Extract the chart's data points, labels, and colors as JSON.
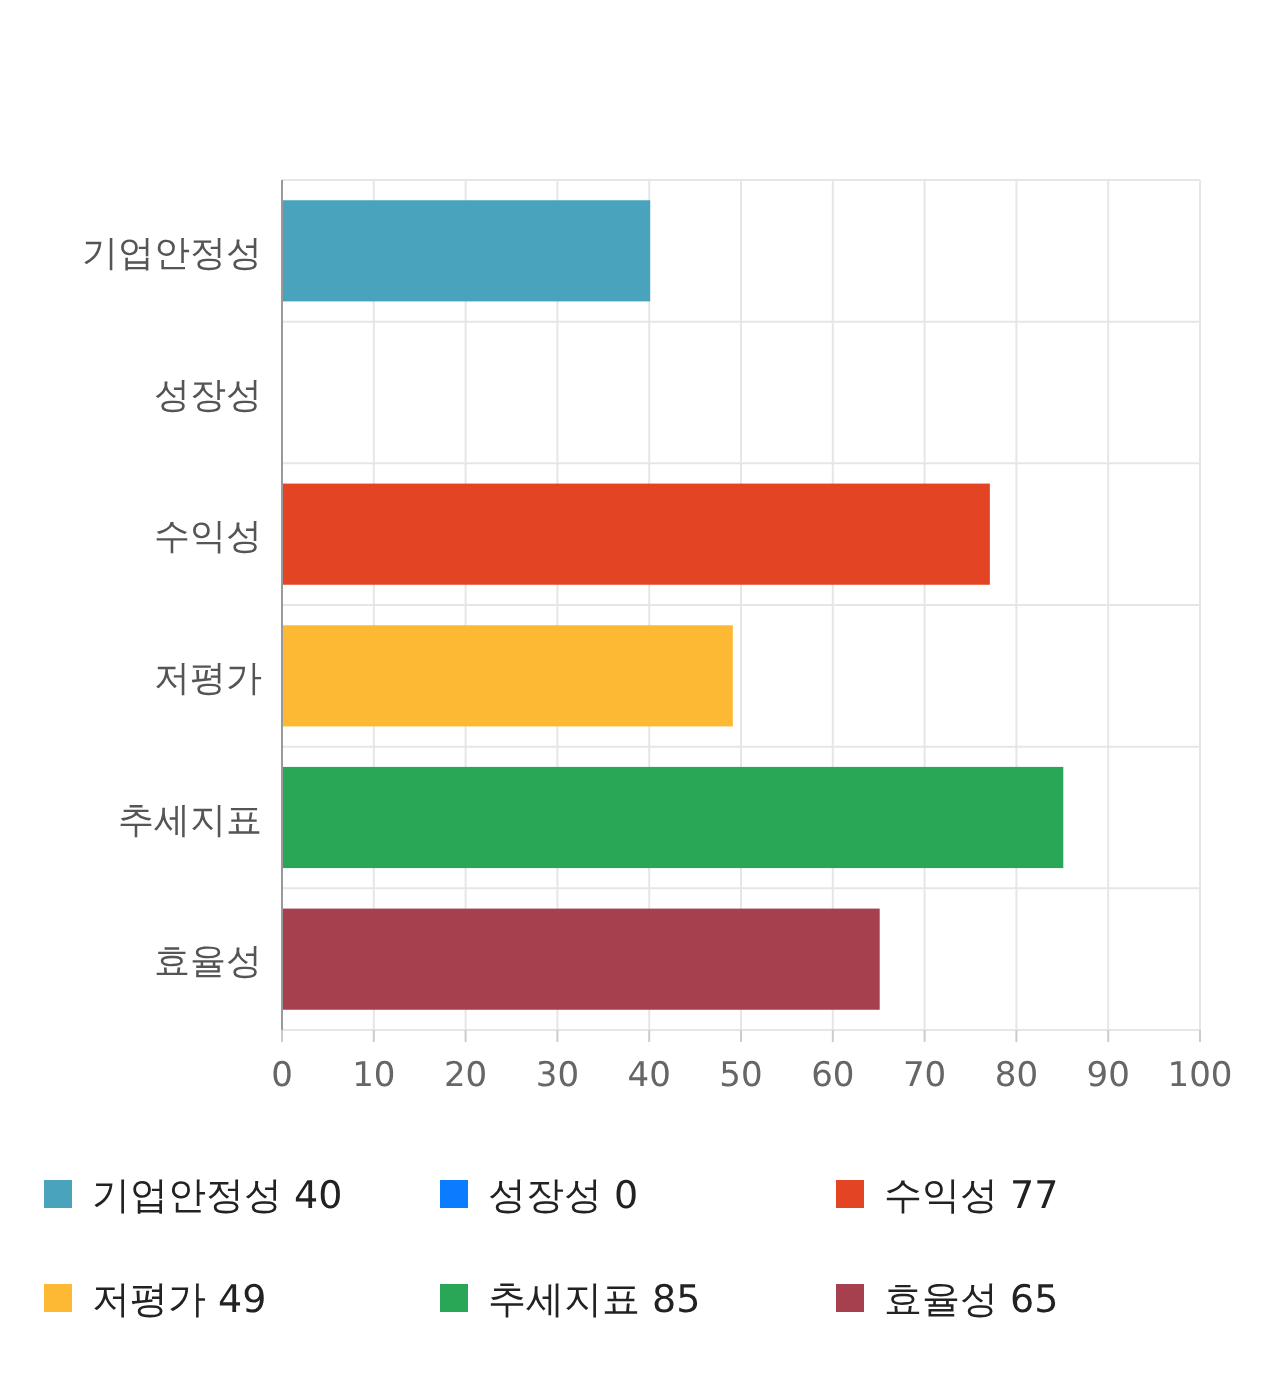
{
  "chart_data": {
    "type": "bar",
    "orientation": "horizontal",
    "categories": [
      "기업안정성",
      "성장성",
      "수익성",
      "저평가",
      "추세지표",
      "효율성"
    ],
    "series": [
      {
        "name": "기업안정성 40",
        "color": "#4aa3bc",
        "values": [
          40,
          null,
          null,
          null,
          null,
          null
        ]
      },
      {
        "name": "성장성 0",
        "color": "#0a7cff",
        "values": [
          null,
          0,
          null,
          null,
          null,
          null
        ]
      },
      {
        "name": "수익성 77",
        "color": "#e24424",
        "values": [
          null,
          null,
          77,
          null,
          null,
          null
        ]
      },
      {
        "name": "저평가 49",
        "color": "#fdb933",
        "values": [
          null,
          null,
          null,
          49,
          null,
          null
        ]
      },
      {
        "name": "추세지표 85",
        "color": "#29a656",
        "values": [
          null,
          null,
          null,
          null,
          85,
          null
        ]
      },
      {
        "name": "효율성 65",
        "color": "#a6404f",
        "values": [
          null,
          null,
          null,
          null,
          null,
          65
        ]
      }
    ],
    "xlim": [
      0,
      100
    ],
    "xticks": [
      0,
      10,
      20,
      30,
      40,
      50,
      60,
      70,
      80,
      90,
      100
    ],
    "grid": true,
    "legend": "bottom"
  }
}
